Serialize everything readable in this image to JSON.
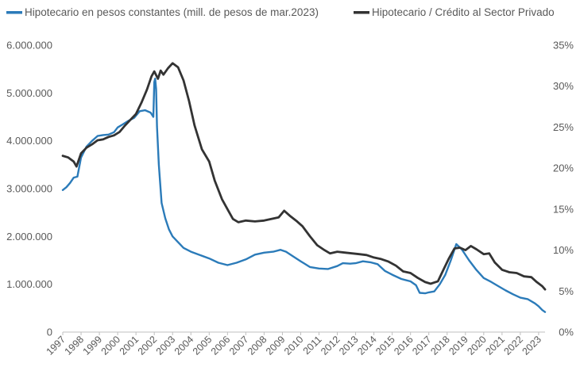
{
  "chart_data": {
    "type": "line",
    "legend_position": "top",
    "grid": false,
    "series": [
      {
        "name": "Hipotecario en pesos constantes (mill. de pesos de mar.2023)",
        "axis": "left",
        "color": "#2b7bb9",
        "points": [
          [
            1997.0,
            2970000
          ],
          [
            1997.2,
            3030000
          ],
          [
            1997.4,
            3120000
          ],
          [
            1997.6,
            3230000
          ],
          [
            1997.8,
            3250000
          ],
          [
            1998.0,
            3650000
          ],
          [
            1998.3,
            3880000
          ],
          [
            1998.6,
            4000000
          ],
          [
            1998.9,
            4100000
          ],
          [
            1999.2,
            4120000
          ],
          [
            1999.5,
            4130000
          ],
          [
            1999.8,
            4180000
          ],
          [
            2000.0,
            4280000
          ],
          [
            2000.3,
            4350000
          ],
          [
            2000.6,
            4420000
          ],
          [
            2000.9,
            4480000
          ],
          [
            2001.2,
            4620000
          ],
          [
            2001.5,
            4640000
          ],
          [
            2001.8,
            4590000
          ],
          [
            2001.95,
            4500000
          ],
          [
            2002.0,
            5230000
          ],
          [
            2002.05,
            5300000
          ],
          [
            2002.1,
            5080000
          ],
          [
            2002.15,
            4300000
          ],
          [
            2002.25,
            3500000
          ],
          [
            2002.4,
            2700000
          ],
          [
            2002.6,
            2380000
          ],
          [
            2002.8,
            2150000
          ],
          [
            2003.0,
            2000000
          ],
          [
            2003.3,
            1880000
          ],
          [
            2003.6,
            1760000
          ],
          [
            2004.0,
            1680000
          ],
          [
            2004.5,
            1610000
          ],
          [
            2005.0,
            1540000
          ],
          [
            2005.5,
            1450000
          ],
          [
            2006.0,
            1400000
          ],
          [
            2006.5,
            1450000
          ],
          [
            2007.0,
            1520000
          ],
          [
            2007.5,
            1620000
          ],
          [
            2008.0,
            1660000
          ],
          [
            2008.5,
            1680000
          ],
          [
            2008.9,
            1720000
          ],
          [
            2009.2,
            1680000
          ],
          [
            2009.6,
            1580000
          ],
          [
            2010.0,
            1480000
          ],
          [
            2010.5,
            1360000
          ],
          [
            2011.0,
            1330000
          ],
          [
            2011.5,
            1320000
          ],
          [
            2012.0,
            1380000
          ],
          [
            2012.3,
            1440000
          ],
          [
            2012.7,
            1430000
          ],
          [
            2013.0,
            1440000
          ],
          [
            2013.4,
            1480000
          ],
          [
            2013.8,
            1460000
          ],
          [
            2014.2,
            1420000
          ],
          [
            2014.6,
            1280000
          ],
          [
            2015.0,
            1200000
          ],
          [
            2015.5,
            1110000
          ],
          [
            2016.0,
            1060000
          ],
          [
            2016.3,
            980000
          ],
          [
            2016.5,
            820000
          ],
          [
            2016.8,
            810000
          ],
          [
            2017.0,
            830000
          ],
          [
            2017.3,
            850000
          ],
          [
            2017.6,
            1000000
          ],
          [
            2017.9,
            1200000
          ],
          [
            2018.2,
            1500000
          ],
          [
            2018.5,
            1840000
          ],
          [
            2018.8,
            1730000
          ],
          [
            2019.2,
            1500000
          ],
          [
            2019.6,
            1300000
          ],
          [
            2020.0,
            1130000
          ],
          [
            2020.4,
            1050000
          ],
          [
            2020.8,
            960000
          ],
          [
            2021.2,
            870000
          ],
          [
            2021.6,
            790000
          ],
          [
            2022.0,
            720000
          ],
          [
            2022.4,
            690000
          ],
          [
            2022.8,
            600000
          ],
          [
            2023.0,
            540000
          ],
          [
            2023.2,
            460000
          ],
          [
            2023.35,
            420000
          ]
        ]
      },
      {
        "name": "Hipotecario / Crédito al Sector Privado",
        "axis": "right",
        "color": "#333333",
        "points": [
          [
            1997.0,
            21.5
          ],
          [
            1997.3,
            21.3
          ],
          [
            1997.6,
            20.8
          ],
          [
            1997.75,
            20.2
          ],
          [
            1998.0,
            21.8
          ],
          [
            1998.3,
            22.5
          ],
          [
            1998.6,
            22.9
          ],
          [
            1998.9,
            23.4
          ],
          [
            1999.2,
            23.5
          ],
          [
            1999.5,
            23.8
          ],
          [
            1999.8,
            24.0
          ],
          [
            2000.1,
            24.4
          ],
          [
            2000.4,
            25.2
          ],
          [
            2000.7,
            25.9
          ],
          [
            2001.0,
            26.6
          ],
          [
            2001.3,
            28.0
          ],
          [
            2001.6,
            29.6
          ],
          [
            2001.85,
            31.2
          ],
          [
            2002.0,
            31.8
          ],
          [
            2002.2,
            30.9
          ],
          [
            2002.35,
            31.9
          ],
          [
            2002.5,
            31.4
          ],
          [
            2002.75,
            32.2
          ],
          [
            2003.0,
            32.8
          ],
          [
            2003.3,
            32.3
          ],
          [
            2003.6,
            30.7
          ],
          [
            2003.9,
            28.2
          ],
          [
            2004.2,
            25.2
          ],
          [
            2004.6,
            22.3
          ],
          [
            2005.0,
            20.8
          ],
          [
            2005.3,
            18.5
          ],
          [
            2005.7,
            16.2
          ],
          [
            2006.0,
            15.0
          ],
          [
            2006.3,
            13.8
          ],
          [
            2006.6,
            13.4
          ],
          [
            2007.0,
            13.6
          ],
          [
            2007.5,
            13.5
          ],
          [
            2008.0,
            13.6
          ],
          [
            2008.4,
            13.8
          ],
          [
            2008.8,
            14.0
          ],
          [
            2009.1,
            14.8
          ],
          [
            2009.4,
            14.2
          ],
          [
            2009.8,
            13.5
          ],
          [
            2010.1,
            12.9
          ],
          [
            2010.5,
            11.7
          ],
          [
            2010.9,
            10.6
          ],
          [
            2011.3,
            10.0
          ],
          [
            2011.6,
            9.6
          ],
          [
            2012.0,
            9.8
          ],
          [
            2012.4,
            9.7
          ],
          [
            2012.8,
            9.6
          ],
          [
            2013.2,
            9.5
          ],
          [
            2013.6,
            9.4
          ],
          [
            2014.0,
            9.1
          ],
          [
            2014.4,
            8.9
          ],
          [
            2014.8,
            8.6
          ],
          [
            2015.2,
            8.1
          ],
          [
            2015.6,
            7.4
          ],
          [
            2016.0,
            7.2
          ],
          [
            2016.4,
            6.6
          ],
          [
            2016.8,
            6.1
          ],
          [
            2017.1,
            5.9
          ],
          [
            2017.5,
            6.2
          ],
          [
            2017.8,
            7.6
          ],
          [
            2018.1,
            9.0
          ],
          [
            2018.4,
            10.2
          ],
          [
            2018.7,
            10.3
          ],
          [
            2019.0,
            10.0
          ],
          [
            2019.3,
            10.5
          ],
          [
            2019.6,
            10.1
          ],
          [
            2020.0,
            9.5
          ],
          [
            2020.3,
            9.6
          ],
          [
            2020.6,
            8.5
          ],
          [
            2021.0,
            7.6
          ],
          [
            2021.4,
            7.3
          ],
          [
            2021.8,
            7.2
          ],
          [
            2022.2,
            6.8
          ],
          [
            2022.6,
            6.7
          ],
          [
            2022.9,
            6.1
          ],
          [
            2023.2,
            5.6
          ],
          [
            2023.35,
            5.2
          ]
        ]
      }
    ],
    "y_left": {
      "range": [
        0,
        6000000
      ],
      "ticks": [
        0,
        1000000,
        2000000,
        3000000,
        4000000,
        5000000,
        6000000
      ],
      "tick_labels": [
        "0",
        "1.000.000",
        "2.000.000",
        "3.000.000",
        "4.000.000",
        "5.000.000",
        "6.000.000"
      ]
    },
    "y_right": {
      "range": [
        0,
        35
      ],
      "ticks": [
        0,
        5,
        10,
        15,
        20,
        25,
        30,
        35
      ],
      "tick_labels": [
        "0%",
        "5%",
        "10%",
        "15%",
        "20%",
        "25%",
        "30%",
        "35%"
      ]
    },
    "x_axis": {
      "range": [
        1997,
        2023.35
      ],
      "tick_labels": [
        "1997",
        "1998",
        "1999",
        "2000",
        "2001",
        "2002",
        "2003",
        "2004",
        "2005",
        "2006",
        "2007",
        "2008",
        "2009",
        "2010",
        "2011",
        "2012",
        "2013",
        "2014",
        "2015",
        "2016",
        "2017",
        "2018",
        "2019",
        "2020",
        "2021",
        "2022",
        "2023"
      ]
    }
  }
}
